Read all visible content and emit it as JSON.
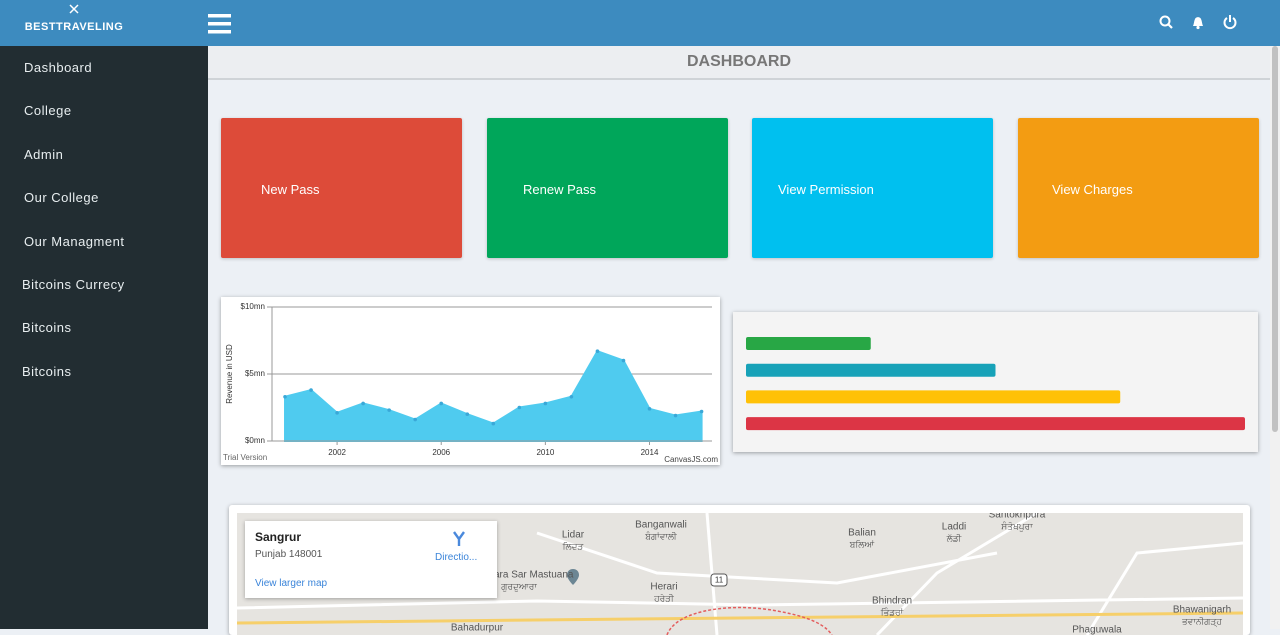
{
  "header": {
    "brand": "BESTTRAVELING"
  },
  "sidebar": {
    "items": [
      "Dashboard",
      "College",
      "Admin",
      "Our College",
      "Our Managment",
      "Bitcoins Currecy",
      "Bitcoins",
      "Bitcoins"
    ]
  },
  "page_title": "DASHBOARD",
  "tiles": [
    {
      "label": "New Pass",
      "color": "#dd4b39"
    },
    {
      "label": "Renew Pass",
      "color": "#00a65a"
    },
    {
      "label": "View Permission",
      "color": "#00c0ef"
    },
    {
      "label": "View Charges",
      "color": "#f39c12"
    }
  ],
  "chart_data": [
    {
      "type": "area",
      "x": [
        2000,
        2001,
        2002,
        2003,
        2004,
        2005,
        2006,
        2007,
        2008,
        2009,
        2010,
        2011,
        2012,
        2013,
        2014,
        2015,
        2016
      ],
      "series": [
        {
          "color": "#4fcbef",
          "values": [
            3.3,
            3.8,
            2.1,
            2.8,
            2.3,
            1.6,
            2.8,
            2.0,
            1.3,
            2.5,
            2.8,
            3.3,
            6.7,
            6.0,
            2.4,
            1.9,
            2.2
          ]
        }
      ],
      "xlim": [
        1999.5,
        2016.4
      ],
      "xticks": [
        2002,
        2006,
        2010,
        2014
      ],
      "ylim": [
        0,
        10
      ],
      "yticks": [
        {
          "value": 0,
          "label": "$0mn"
        },
        {
          "value": 5,
          "label": "$5mn"
        },
        {
          "value": 10,
          "label": "$10mn"
        }
      ],
      "ylabel": "Revenue in USD",
      "grid": true,
      "footer_left": "Trial Version",
      "footer_right": "CanvasJS.com"
    },
    {
      "type": "hbar",
      "categories": [
        null,
        null,
        null,
        null
      ],
      "values": [
        25,
        50,
        75,
        100
      ],
      "colors": [
        "#28a745",
        "#17a2b8",
        "#ffc107",
        "#dc3545"
      ],
      "xlim": [
        0,
        100
      ]
    }
  ],
  "map": {
    "place": "Sangrur",
    "address": "Punjab 148001",
    "directions": "Directio...",
    "larger_map": "View larger map",
    "labels": [
      {
        "name": "Lidar",
        "local": "ਲਿਦੜ"
      },
      {
        "name": "Banganwali",
        "local": "ਬੰਗਾਂਵਾਲੀ"
      },
      {
        "name": "Gurdwara Sar Mastuana",
        "local": "ਗੁਰਦੁਆਰਾ"
      },
      {
        "name": "Herari",
        "local": "ਹਰੇੜੀ"
      },
      {
        "name": "Balian",
        "local": "ਬਲਿਆਂ"
      },
      {
        "name": "Laddi",
        "local": "ਲੱਡੀ"
      },
      {
        "name": "Santokhpura",
        "local": "ਸੰਤੋਖਪੁਰਾ"
      },
      {
        "name": "Bhindran",
        "local": "ਭਿੰਡਰਾਂ"
      },
      {
        "name": "Bhawanigarh",
        "local": "ਭਵਾਨੀਗੜ੍ਹ"
      },
      {
        "name": "Bahadurpur",
        "local": null
      },
      {
        "name": "Phaguwala",
        "local": null
      }
    ],
    "road": "11"
  }
}
